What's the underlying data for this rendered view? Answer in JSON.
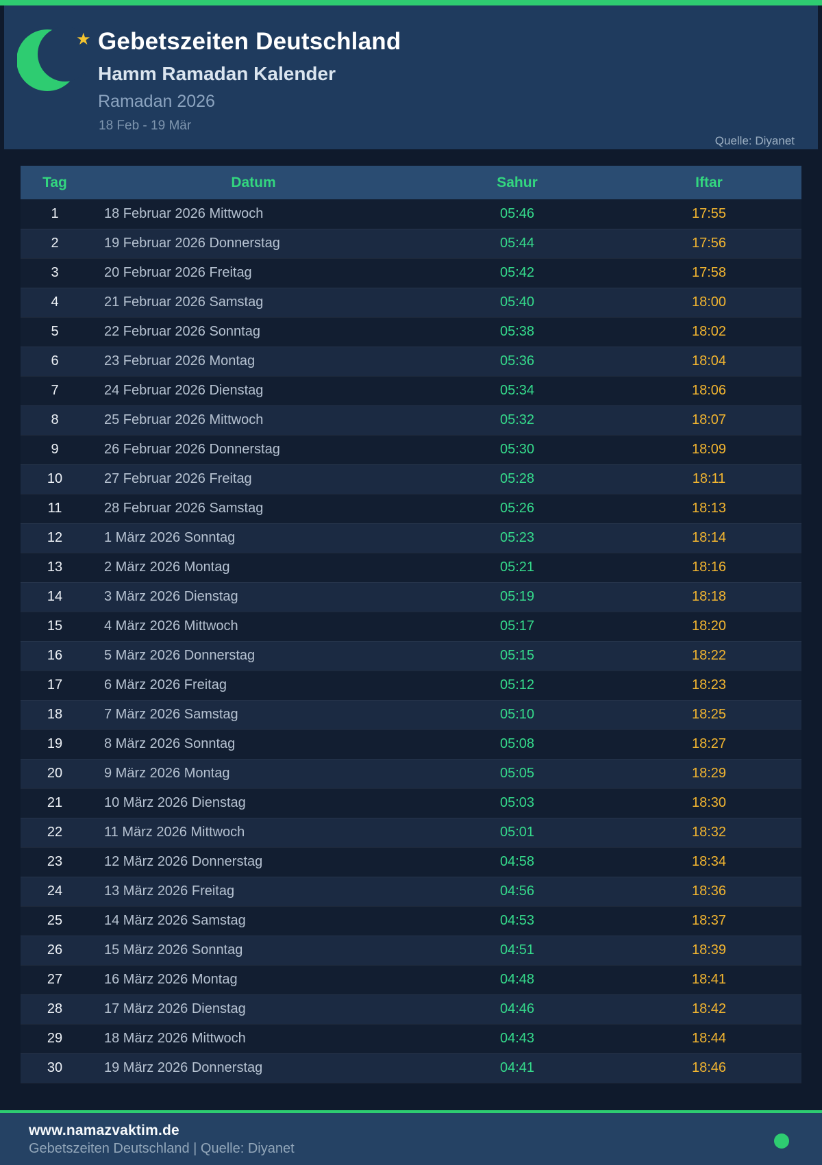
{
  "header": {
    "title": "Gebetszeiten Deutschland",
    "subtitle": "Hamm Ramadan Kalender",
    "season": "Ramadan 2026",
    "date_range": "18 Feb - 19 Mär",
    "source": "Quelle: Diyanet",
    "icons": [
      "crescent-moon-icon",
      "star-icon"
    ]
  },
  "table": {
    "columns": [
      "Tag",
      "Datum",
      "Sahur",
      "Iftar"
    ],
    "rows": [
      {
        "tag": "1",
        "datum": "18 Februar 2026 Mittwoch",
        "sahur": "05:46",
        "iftar": "17:55"
      },
      {
        "tag": "2",
        "datum": "19 Februar 2026 Donnerstag",
        "sahur": "05:44",
        "iftar": "17:56"
      },
      {
        "tag": "3",
        "datum": "20 Februar 2026 Freitag",
        "sahur": "05:42",
        "iftar": "17:58"
      },
      {
        "tag": "4",
        "datum": "21 Februar 2026 Samstag",
        "sahur": "05:40",
        "iftar": "18:00"
      },
      {
        "tag": "5",
        "datum": "22 Februar 2026 Sonntag",
        "sahur": "05:38",
        "iftar": "18:02"
      },
      {
        "tag": "6",
        "datum": "23 Februar 2026 Montag",
        "sahur": "05:36",
        "iftar": "18:04"
      },
      {
        "tag": "7",
        "datum": "24 Februar 2026 Dienstag",
        "sahur": "05:34",
        "iftar": "18:06"
      },
      {
        "tag": "8",
        "datum": "25 Februar 2026 Mittwoch",
        "sahur": "05:32",
        "iftar": "18:07"
      },
      {
        "tag": "9",
        "datum": "26 Februar 2026 Donnerstag",
        "sahur": "05:30",
        "iftar": "18:09"
      },
      {
        "tag": "10",
        "datum": "27 Februar 2026 Freitag",
        "sahur": "05:28",
        "iftar": "18:11"
      },
      {
        "tag": "11",
        "datum": "28 Februar 2026 Samstag",
        "sahur": "05:26",
        "iftar": "18:13"
      },
      {
        "tag": "12",
        "datum": "1 März 2026 Sonntag",
        "sahur": "05:23",
        "iftar": "18:14"
      },
      {
        "tag": "13",
        "datum": "2 März 2026 Montag",
        "sahur": "05:21",
        "iftar": "18:16"
      },
      {
        "tag": "14",
        "datum": "3 März 2026 Dienstag",
        "sahur": "05:19",
        "iftar": "18:18"
      },
      {
        "tag": "15",
        "datum": "4 März 2026 Mittwoch",
        "sahur": "05:17",
        "iftar": "18:20"
      },
      {
        "tag": "16",
        "datum": "5 März 2026 Donnerstag",
        "sahur": "05:15",
        "iftar": "18:22"
      },
      {
        "tag": "17",
        "datum": "6 März 2026 Freitag",
        "sahur": "05:12",
        "iftar": "18:23"
      },
      {
        "tag": "18",
        "datum": "7 März 2026 Samstag",
        "sahur": "05:10",
        "iftar": "18:25"
      },
      {
        "tag": "19",
        "datum": "8 März 2026 Sonntag",
        "sahur": "05:08",
        "iftar": "18:27"
      },
      {
        "tag": "20",
        "datum": "9 März 2026 Montag",
        "sahur": "05:05",
        "iftar": "18:29"
      },
      {
        "tag": "21",
        "datum": "10 März 2026 Dienstag",
        "sahur": "05:03",
        "iftar": "18:30"
      },
      {
        "tag": "22",
        "datum": "11 März 2026 Mittwoch",
        "sahur": "05:01",
        "iftar": "18:32"
      },
      {
        "tag": "23",
        "datum": "12 März 2026 Donnerstag",
        "sahur": "04:58",
        "iftar": "18:34"
      },
      {
        "tag": "24",
        "datum": "13 März 2026 Freitag",
        "sahur": "04:56",
        "iftar": "18:36"
      },
      {
        "tag": "25",
        "datum": "14 März 2026 Samstag",
        "sahur": "04:53",
        "iftar": "18:37"
      },
      {
        "tag": "26",
        "datum": "15 März 2026 Sonntag",
        "sahur": "04:51",
        "iftar": "18:39"
      },
      {
        "tag": "27",
        "datum": "16 März 2026 Montag",
        "sahur": "04:48",
        "iftar": "18:41"
      },
      {
        "tag": "28",
        "datum": "17 März 2026 Dienstag",
        "sahur": "04:46",
        "iftar": "18:42"
      },
      {
        "tag": "29",
        "datum": "18 März 2026 Mittwoch",
        "sahur": "04:43",
        "iftar": "18:44"
      },
      {
        "tag": "30",
        "datum": "19 März 2026 Donnerstag",
        "sahur": "04:41",
        "iftar": "18:46"
      }
    ]
  },
  "footer": {
    "website": "www.namazvaktim.de",
    "tagline": "Gebetszeiten Deutschland | Quelle: Diyanet"
  },
  "colors": {
    "accent_green": "#2ecc71",
    "sahur_green": "#35da8b",
    "iftar_gold": "#f2b530",
    "page_background": "#0f1a2c",
    "header_background": "#1f3b5e",
    "footer_background": "#254264",
    "table_header_background": "#2a4c72",
    "star_gold": "#f4c430"
  }
}
